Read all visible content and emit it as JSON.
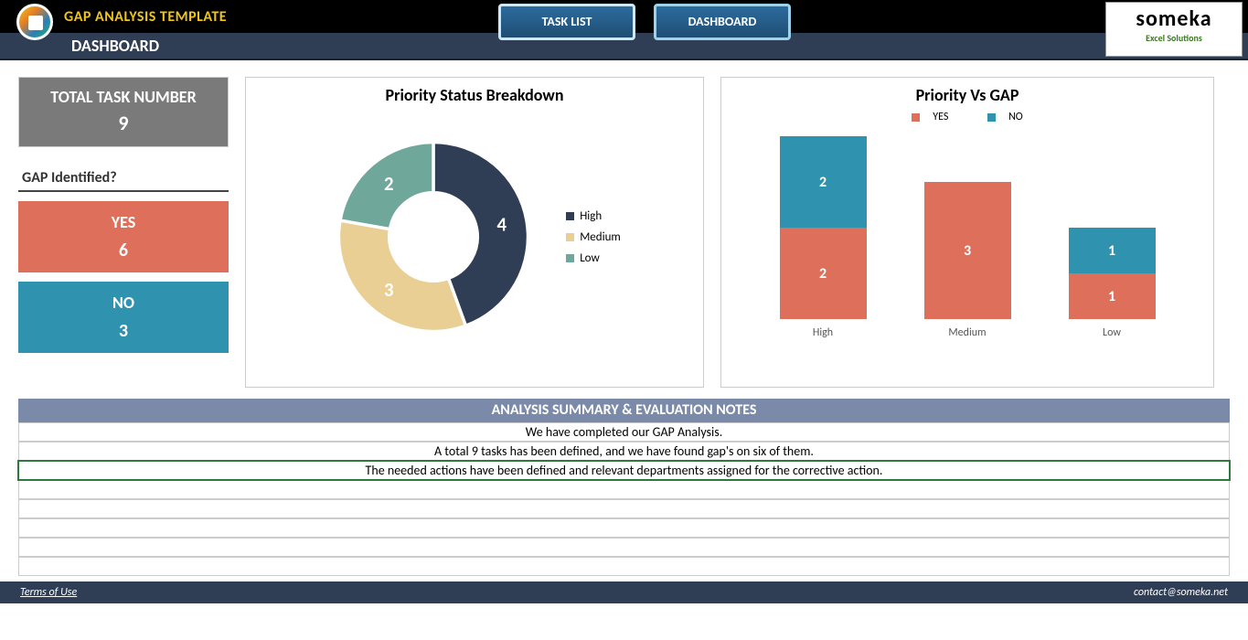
{
  "header": {
    "title": "GAP ANALYSIS TEMPLATE",
    "subtitle": "DASHBOARD",
    "nav": {
      "task_list": "TASK LIST",
      "dashboard": "DASHBOARD"
    },
    "logo": {
      "main": "someka",
      "sub": "Excel Solutions"
    }
  },
  "metrics": {
    "total": {
      "label": "TOTAL TASK NUMBER",
      "value": "9"
    },
    "gap_header": "GAP Identified?",
    "yes": {
      "label": "YES",
      "value": "6",
      "color": "#de6f5a"
    },
    "no": {
      "label": "NO",
      "value": "3",
      "color": "#2f93b0"
    }
  },
  "donut_chart": {
    "title": "Priority Status Breakdown",
    "slices": [
      {
        "label": "High",
        "value": 4,
        "color": "#2f3e55"
      },
      {
        "label": "Medium",
        "value": 3,
        "color": "#e9cf94"
      },
      {
        "label": "Low",
        "value": 2,
        "color": "#6fa89a"
      }
    ],
    "total": 9
  },
  "bar_chart": {
    "title": "Priority Vs GAP",
    "legend": {
      "yes": "YES",
      "no": "NO",
      "yes_color": "#de6f5a",
      "no_color": "#2f93b0"
    },
    "unit_height": 50,
    "categories": [
      {
        "name": "High",
        "yes": 2,
        "no": 2
      },
      {
        "name": "Medium",
        "yes": 3,
        "no": 0
      },
      {
        "name": "Low",
        "yes": 1,
        "no": 1
      }
    ]
  },
  "summary": {
    "header": "ANALYSIS SUMMARY & EVALUATION NOTES",
    "rows": [
      "We have completed our GAP Analysis.",
      "A total 9 tasks has been defined, and we have found gap's on six of them.",
      "The needed actions have been defined and relevant departments assigned for the corrective action."
    ],
    "selected_row": 2,
    "empty_rows": 5
  },
  "footer": {
    "terms": "Terms of Use",
    "contact": "contact@someka.net"
  }
}
